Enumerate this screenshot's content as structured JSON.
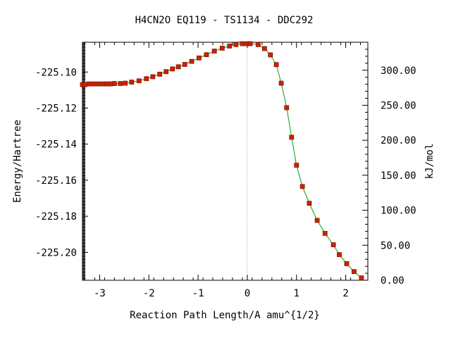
{
  "chart_data": {
    "type": "line",
    "title": "H4CN2O    EQ119 - TS1134 - DDC292",
    "xlabel": "Reaction Path Length/A amu^{1/2}",
    "ylabel": "Energy/Hartree",
    "y2label": "kJ/mol",
    "xlim": [
      -3.35,
      2.45
    ],
    "ylim": [
      -225.2155,
      -225.0835
    ],
    "y2lim": [
      0.0,
      340.0
    ],
    "x_ticks": [
      -3,
      -2,
      -1,
      0,
      1,
      2
    ],
    "x_tick_labels": [
      "-3",
      "-2",
      "-1",
      "0",
      "1",
      "2"
    ],
    "y_ticks": [
      -225.1,
      -225.12,
      -225.14,
      -225.16,
      -225.18,
      -225.2
    ],
    "y_tick_labels": [
      "-225.10",
      "-225.12",
      "-225.14",
      "-225.16",
      "-225.18",
      "-225.20"
    ],
    "y2_ticks": [
      300,
      250,
      200,
      150,
      100,
      50,
      0
    ],
    "y2_tick_labels": [
      "300.00",
      "250.00",
      "200.00",
      "150.00",
      "100.00",
      "50.00",
      "0.00"
    ],
    "ts_marker_x": 0.0,
    "colors": {
      "line": "#00a000",
      "marker": "#cc2200",
      "marker_edge": "#8a1500",
      "ts_line": "#999999"
    },
    "series": [
      {
        "x": [
          -3.35,
          -3.3,
          -3.22,
          -3.12,
          -3.02,
          -2.92,
          -2.85,
          -2.78,
          -2.7,
          -2.58,
          -2.48,
          -2.35,
          -2.2,
          -2.05,
          -1.92,
          -1.78,
          -1.65,
          -1.52,
          -1.4,
          -1.27,
          -1.13,
          -0.98,
          -0.83,
          -0.67,
          -0.51,
          -0.36,
          -0.23,
          -0.1,
          0.0,
          0.06,
          0.22,
          0.35,
          0.47,
          0.59,
          0.69,
          0.8,
          0.9,
          1.0,
          1.12,
          1.26,
          1.42,
          1.58,
          1.75,
          1.87,
          2.02,
          2.17,
          2.32
        ],
        "y": [
          -225.107,
          -225.107,
          -225.1066,
          -225.1066,
          -225.1066,
          -225.1066,
          -225.1066,
          -225.1066,
          -225.1064,
          -225.1064,
          -225.1062,
          -225.1056,
          -225.1049,
          -225.1037,
          -225.1026,
          -225.1012,
          -225.0998,
          -225.0983,
          -225.0971,
          -225.0958,
          -225.0941,
          -225.0922,
          -225.0904,
          -225.0884,
          -225.0868,
          -225.0856,
          -225.0848,
          -225.0843,
          -225.0843,
          -225.0843,
          -225.0848,
          -225.087,
          -225.0905,
          -225.0959,
          -225.1062,
          -225.1198,
          -225.1362,
          -225.1517,
          -225.1635,
          -225.1728,
          -225.1823,
          -225.1895,
          -225.1958,
          -225.2013,
          -225.2063,
          -225.2107,
          -225.2142
        ]
      }
    ]
  }
}
